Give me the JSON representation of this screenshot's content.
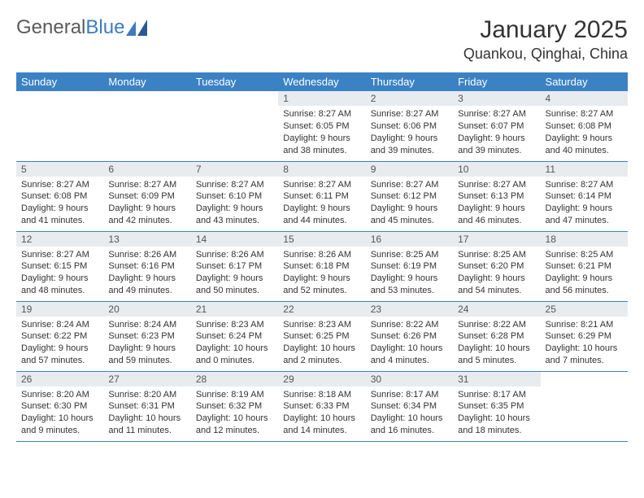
{
  "logo": {
    "textGray": "General",
    "textBlue": "Blue"
  },
  "title": "January 2025",
  "location": "Quankou, Qinghai, China",
  "colors": {
    "headerBg": "#3b82c4",
    "headerText": "#ffffff",
    "dayNumBg": "#e8ecef",
    "rowBorder": "#3b82c4",
    "logoGray": "#5a5a5a",
    "logoBlue": "#3b7bbf",
    "bodyText": "#333333"
  },
  "dayHeaders": [
    "Sunday",
    "Monday",
    "Tuesday",
    "Wednesday",
    "Thursday",
    "Friday",
    "Saturday"
  ],
  "weeks": [
    [
      null,
      null,
      null,
      {
        "n": "1",
        "sr": "8:27 AM",
        "ss": "6:05 PM",
        "dl": "9 hours and 38 minutes."
      },
      {
        "n": "2",
        "sr": "8:27 AM",
        "ss": "6:06 PM",
        "dl": "9 hours and 39 minutes."
      },
      {
        "n": "3",
        "sr": "8:27 AM",
        "ss": "6:07 PM",
        "dl": "9 hours and 39 minutes."
      },
      {
        "n": "4",
        "sr": "8:27 AM",
        "ss": "6:08 PM",
        "dl": "9 hours and 40 minutes."
      }
    ],
    [
      {
        "n": "5",
        "sr": "8:27 AM",
        "ss": "6:08 PM",
        "dl": "9 hours and 41 minutes."
      },
      {
        "n": "6",
        "sr": "8:27 AM",
        "ss": "6:09 PM",
        "dl": "9 hours and 42 minutes."
      },
      {
        "n": "7",
        "sr": "8:27 AM",
        "ss": "6:10 PM",
        "dl": "9 hours and 43 minutes."
      },
      {
        "n": "8",
        "sr": "8:27 AM",
        "ss": "6:11 PM",
        "dl": "9 hours and 44 minutes."
      },
      {
        "n": "9",
        "sr": "8:27 AM",
        "ss": "6:12 PM",
        "dl": "9 hours and 45 minutes."
      },
      {
        "n": "10",
        "sr": "8:27 AM",
        "ss": "6:13 PM",
        "dl": "9 hours and 46 minutes."
      },
      {
        "n": "11",
        "sr": "8:27 AM",
        "ss": "6:14 PM",
        "dl": "9 hours and 47 minutes."
      }
    ],
    [
      {
        "n": "12",
        "sr": "8:27 AM",
        "ss": "6:15 PM",
        "dl": "9 hours and 48 minutes."
      },
      {
        "n": "13",
        "sr": "8:26 AM",
        "ss": "6:16 PM",
        "dl": "9 hours and 49 minutes."
      },
      {
        "n": "14",
        "sr": "8:26 AM",
        "ss": "6:17 PM",
        "dl": "9 hours and 50 minutes."
      },
      {
        "n": "15",
        "sr": "8:26 AM",
        "ss": "6:18 PM",
        "dl": "9 hours and 52 minutes."
      },
      {
        "n": "16",
        "sr": "8:25 AM",
        "ss": "6:19 PM",
        "dl": "9 hours and 53 minutes."
      },
      {
        "n": "17",
        "sr": "8:25 AM",
        "ss": "6:20 PM",
        "dl": "9 hours and 54 minutes."
      },
      {
        "n": "18",
        "sr": "8:25 AM",
        "ss": "6:21 PM",
        "dl": "9 hours and 56 minutes."
      }
    ],
    [
      {
        "n": "19",
        "sr": "8:24 AM",
        "ss": "6:22 PM",
        "dl": "9 hours and 57 minutes."
      },
      {
        "n": "20",
        "sr": "8:24 AM",
        "ss": "6:23 PM",
        "dl": "9 hours and 59 minutes."
      },
      {
        "n": "21",
        "sr": "8:23 AM",
        "ss": "6:24 PM",
        "dl": "10 hours and 0 minutes."
      },
      {
        "n": "22",
        "sr": "8:23 AM",
        "ss": "6:25 PM",
        "dl": "10 hours and 2 minutes."
      },
      {
        "n": "23",
        "sr": "8:22 AM",
        "ss": "6:26 PM",
        "dl": "10 hours and 4 minutes."
      },
      {
        "n": "24",
        "sr": "8:22 AM",
        "ss": "6:28 PM",
        "dl": "10 hours and 5 minutes."
      },
      {
        "n": "25",
        "sr": "8:21 AM",
        "ss": "6:29 PM",
        "dl": "10 hours and 7 minutes."
      }
    ],
    [
      {
        "n": "26",
        "sr": "8:20 AM",
        "ss": "6:30 PM",
        "dl": "10 hours and 9 minutes."
      },
      {
        "n": "27",
        "sr": "8:20 AM",
        "ss": "6:31 PM",
        "dl": "10 hours and 11 minutes."
      },
      {
        "n": "28",
        "sr": "8:19 AM",
        "ss": "6:32 PM",
        "dl": "10 hours and 12 minutes."
      },
      {
        "n": "29",
        "sr": "8:18 AM",
        "ss": "6:33 PM",
        "dl": "10 hours and 14 minutes."
      },
      {
        "n": "30",
        "sr": "8:17 AM",
        "ss": "6:34 PM",
        "dl": "10 hours and 16 minutes."
      },
      {
        "n": "31",
        "sr": "8:17 AM",
        "ss": "6:35 PM",
        "dl": "10 hours and 18 minutes."
      },
      null
    ]
  ],
  "labels": {
    "sunrise": "Sunrise:",
    "sunset": "Sunset:",
    "daylight": "Daylight:"
  }
}
